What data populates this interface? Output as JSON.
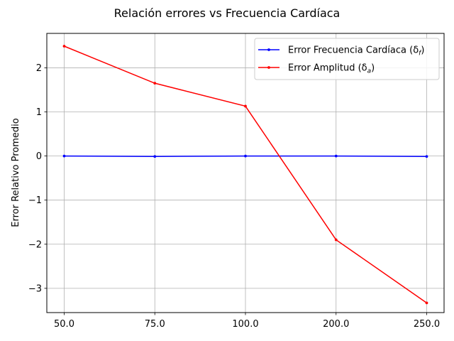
{
  "chart_data": {
    "type": "line",
    "title": "Relación errores vs Frecuencia Cardíaca",
    "xlabel": "",
    "ylabel": "Error Relativo Promedio",
    "categories": [
      "50.0",
      "75.0",
      "100.0",
      "200.0",
      "250.0"
    ],
    "ylim": [
      -3.55,
      2.78
    ],
    "yticks": [
      "−3",
      "−2",
      "−1",
      "0",
      "1",
      "2"
    ],
    "ytick_values": [
      -3,
      -2,
      -1,
      0,
      1,
      2
    ],
    "grid": true,
    "legend_position": "top-right",
    "series": [
      {
        "name": "Error Frecuencia Cardíaca (δ",
        "name_sub": "f",
        "name_suffix": ")",
        "color": "#0000ff",
        "values": [
          0.0,
          -0.01,
          0.0,
          0.0,
          -0.01
        ]
      },
      {
        "name": "Error Amplitud (δ",
        "name_sub": "a",
        "name_suffix": ")",
        "color": "#ff0000",
        "values": [
          2.49,
          1.65,
          1.13,
          -1.9,
          -3.33
        ]
      }
    ]
  }
}
